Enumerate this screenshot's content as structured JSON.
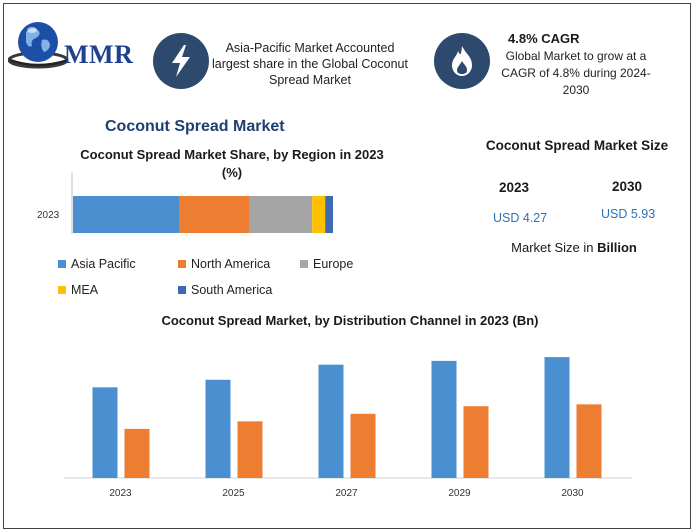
{
  "logo": {
    "text": "MMR"
  },
  "header": {
    "region_text": "Asia-Pacific Market Accounted largest share in the Global Coconut Spread Market",
    "cagr_title": "4.8% CAGR",
    "cagr_text": "Global Market to grow at a CAGR of 4.8% during 2024-2030",
    "icons": [
      "lightning-icon",
      "flame-icon"
    ]
  },
  "main_title": "Coconut Spread Market",
  "market_size": {
    "title": "Coconut Spread Market Size",
    "years": [
      {
        "year": "2023",
        "value": "USD 4.27"
      },
      {
        "year": "2030",
        "value": "USD 5.93"
      }
    ],
    "note_prefix": "Market Size in ",
    "note_bold": "Billion"
  },
  "colors": {
    "asia_pacific": "#4a90d0",
    "north_america": "#ed7d31",
    "europe": "#a5a5a5",
    "mea": "#ffc000",
    "south_america": "#3d6ab0",
    "badge": "#2d4a6e",
    "title_blue": "#1f3f73",
    "value_blue": "#2a73b8"
  },
  "chart_data": [
    {
      "type": "bar",
      "orientation": "horizontal-stacked",
      "title": "Coconut Spread Market Share, by Region in 2023 (%)",
      "categories": [
        "2023"
      ],
      "series": [
        {
          "name": "Asia Pacific",
          "values": [
            41
          ]
        },
        {
          "name": "North America",
          "values": [
            27
          ]
        },
        {
          "name": "Europe",
          "values": [
            24
          ]
        },
        {
          "name": "MEA",
          "values": [
            5
          ]
        },
        {
          "name": "South America",
          "values": [
            3
          ]
        }
      ],
      "xlim": [
        0,
        100
      ],
      "grid": false,
      "legend": "bottom"
    },
    {
      "type": "bar",
      "title": "Coconut Spread Market, by Distribution Channel in 2023 (Bn)",
      "categories": [
        "2023",
        "2025",
        "2027",
        "2029",
        "2030"
      ],
      "series": [
        {
          "values": [
            2.4,
            2.6,
            3.0,
            3.1,
            3.2
          ]
        },
        {
          "values": [
            1.3,
            1.5,
            1.7,
            1.9,
            1.95
          ]
        }
      ],
      "ylim": [
        0,
        3.6
      ],
      "grid": false,
      "legend": "none"
    }
  ]
}
